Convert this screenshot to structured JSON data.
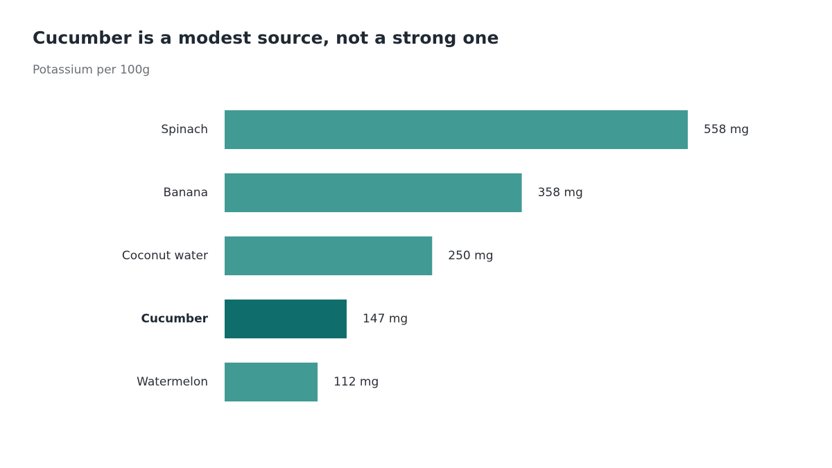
{
  "header": {
    "title": "Cucumber is a modest source, not a strong one",
    "subtitle": "Potassium per 100g"
  },
  "colors": {
    "bar": "#419a94",
    "highlight": "#0f6e6b"
  },
  "chart_data": {
    "type": "bar",
    "orientation": "horizontal",
    "title": "Cucumber is a modest source, not a strong one",
    "subtitle": "Potassium per 100g",
    "categories": [
      "Spinach",
      "Banana",
      "Coconut water",
      "Cucumber",
      "Watermelon"
    ],
    "values": [
      558,
      358,
      250,
      147,
      112
    ],
    "value_labels": [
      "558 mg",
      "358 mg",
      "250 mg",
      "147 mg",
      "112 mg"
    ],
    "unit": "mg",
    "highlight": "Cucumber",
    "xlim": [
      0,
      558
    ],
    "grid": false,
    "legend": "none"
  }
}
